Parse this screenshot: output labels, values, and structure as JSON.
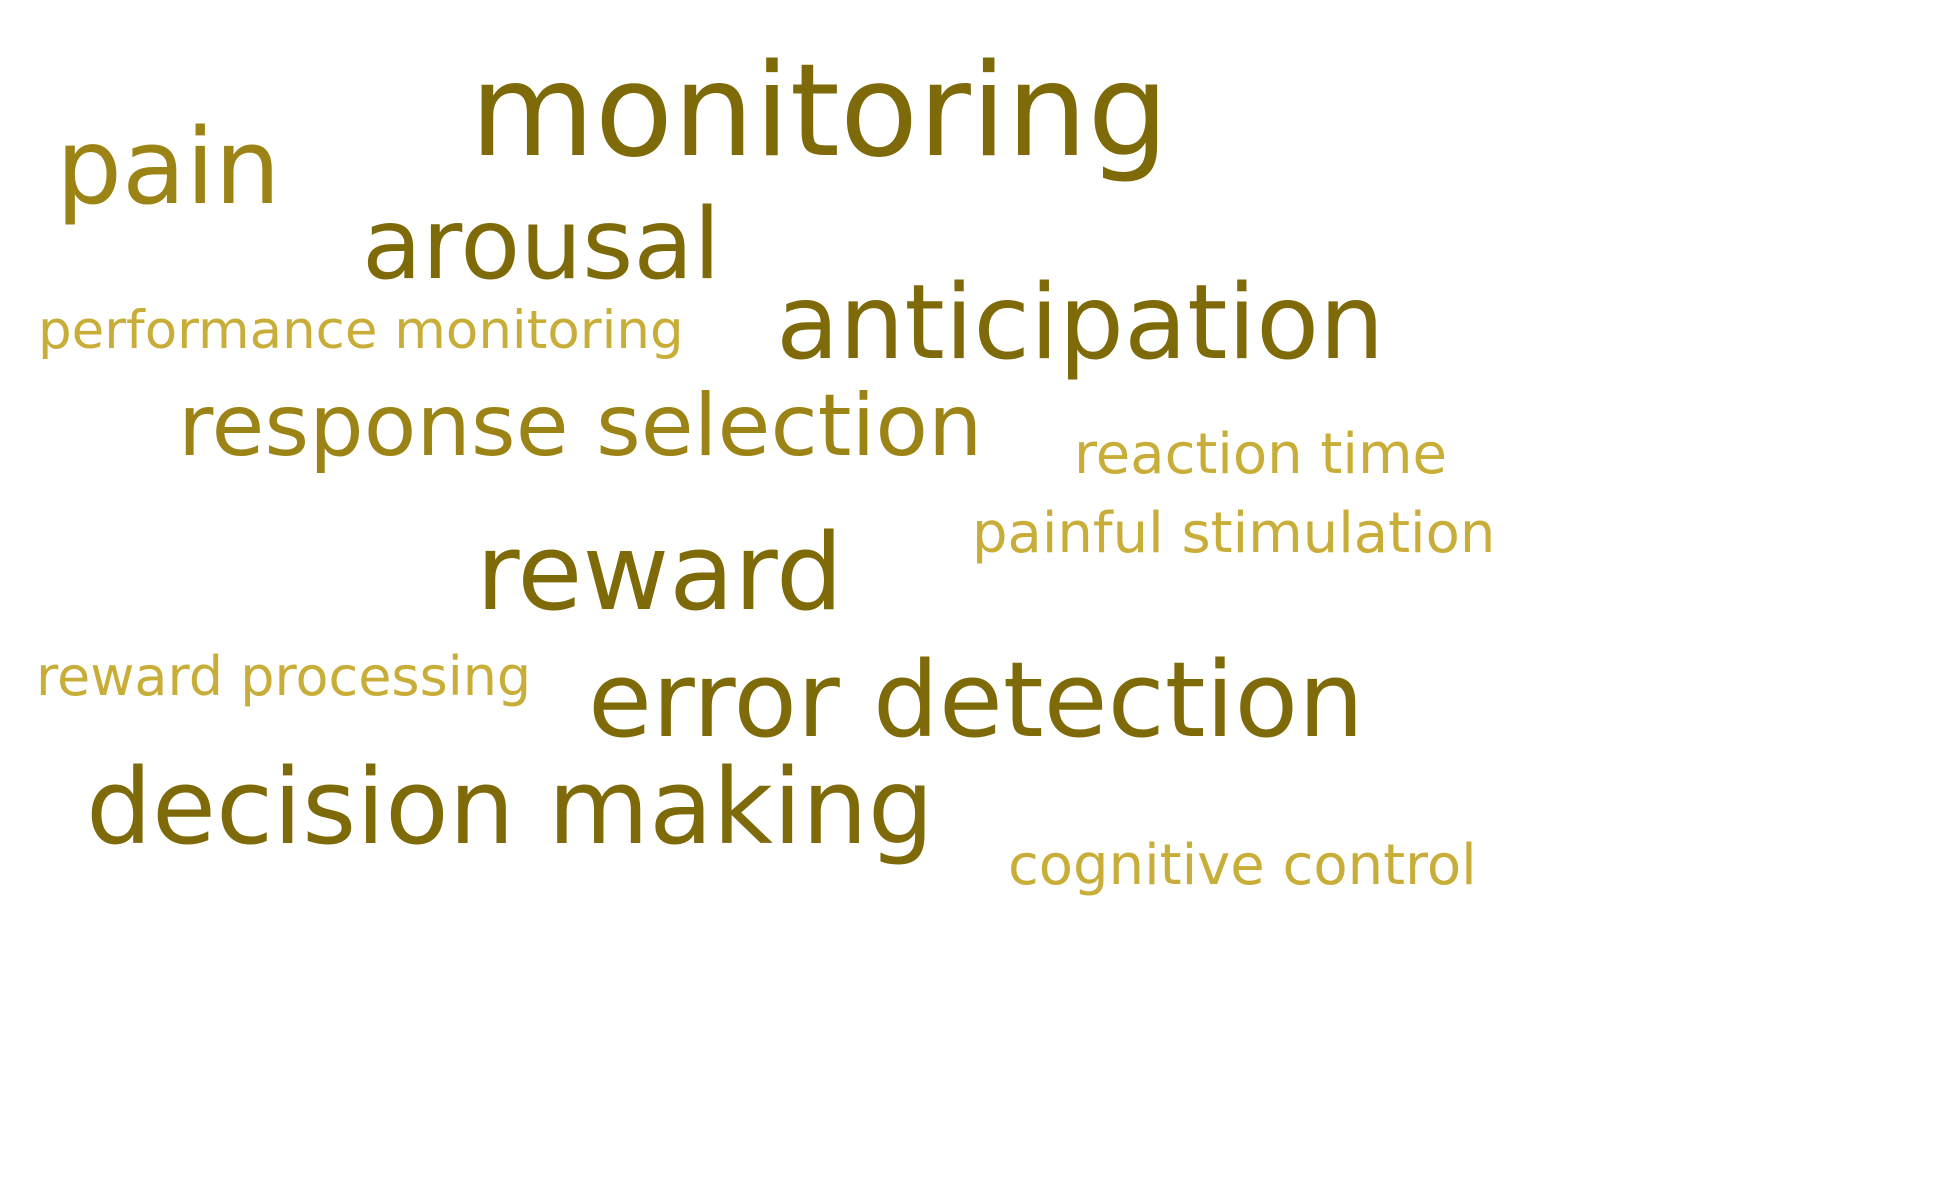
{
  "colors": {
    "background": "#ffffff",
    "tier1": "#7f6a0a",
    "tier2": "#9c8315",
    "tier3": "#c8ae38"
  },
  "words": [
    {
      "key": "monitoring",
      "text": "monitoring",
      "tier": "tier1"
    },
    {
      "key": "pain",
      "text": "pain",
      "tier": "tier2"
    },
    {
      "key": "arousal",
      "text": "arousal",
      "tier": "tier1"
    },
    {
      "key": "performance_monitoring",
      "text": "performance monitoring",
      "tier": "tier3"
    },
    {
      "key": "anticipation",
      "text": "anticipation",
      "tier": "tier1"
    },
    {
      "key": "response_selection",
      "text": "response selection",
      "tier": "tier2"
    },
    {
      "key": "reaction_time",
      "text": "reaction time",
      "tier": "tier3"
    },
    {
      "key": "painful_stimulation",
      "text": "painful stimulation",
      "tier": "tier3"
    },
    {
      "key": "reward",
      "text": "reward",
      "tier": "tier1"
    },
    {
      "key": "reward_processing",
      "text": "reward processing",
      "tier": "tier3"
    },
    {
      "key": "error_detection",
      "text": "error detection",
      "tier": "tier1"
    },
    {
      "key": "decision_making",
      "text": "decision making",
      "tier": "tier1"
    },
    {
      "key": "cognitive_control",
      "text": "cognitive control",
      "tier": "tier3"
    }
  ]
}
